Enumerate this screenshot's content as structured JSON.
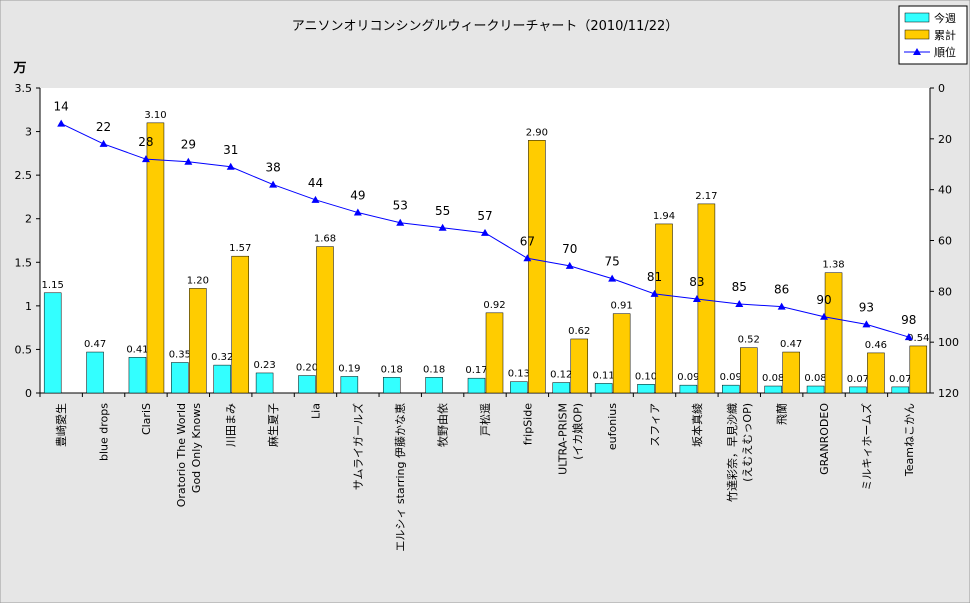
{
  "chart_data": {
    "type": "bar",
    "title": "アニソンオリコンシングルウィークリーチャート（2010/11/22）",
    "y_label": "万",
    "categories": [
      [
        "豊崎愛生"
      ],
      [
        "blue drops"
      ],
      [
        "ClariS"
      ],
      [
        "Oratorio The World",
        "God Only Knows"
      ],
      [
        "川田まみ"
      ],
      [
        "麻生夏子"
      ],
      [
        "Lia"
      ],
      [
        "サムライガールズ"
      ],
      [
        "エルシィ starring 伊藤かな恵"
      ],
      [
        "牧野由依"
      ],
      [
        "戸松遥"
      ],
      [
        "fripSide"
      ],
      [
        "ULTRA-PRISM",
        "(イカ娘OP)"
      ],
      [
        "eufonius"
      ],
      [
        "スフィア"
      ],
      [
        "坂本真綾"
      ],
      [
        "竹達彩奈，早見沙織",
        "(えむえむっOP)"
      ],
      [
        "飛蘭"
      ],
      [
        "GRANRODEO"
      ],
      [
        "ミルキィホームズ"
      ],
      [
        "Teamねこかん"
      ]
    ],
    "series": [
      {
        "name": "今週",
        "color": "#33ffff",
        "values": [
          1.15,
          0.47,
          0.41,
          0.35,
          0.32,
          0.23,
          0.2,
          0.19,
          0.18,
          0.18,
          0.17,
          0.13,
          0.12,
          0.11,
          0.1,
          0.09,
          0.09,
          0.08,
          0.08,
          0.07,
          0.07
        ],
        "value_labels": [
          "1.15",
          "0.47",
          "0.41",
          "0.35",
          "0.32",
          "0.23",
          "0.20",
          "0.19",
          "0.18",
          "0.18",
          "0.17",
          "0.13",
          "0.12",
          "0.11",
          "0.10",
          "0.09",
          "0.09",
          "0.08",
          "0.08",
          "0.07",
          "0.07"
        ]
      },
      {
        "name": "累計",
        "color": "#ffcc00",
        "values": [
          null,
          null,
          3.1,
          1.2,
          1.57,
          null,
          1.68,
          null,
          null,
          null,
          0.92,
          2.9,
          0.62,
          0.91,
          1.94,
          2.17,
          0.52,
          0.47,
          1.38,
          0.46,
          0.54
        ],
        "value_labels": [
          null,
          null,
          "3.10",
          "1.20",
          "1.57",
          null,
          "1.68",
          null,
          null,
          null,
          "0.92",
          "2.90",
          "0.62",
          "0.91",
          "1.94",
          "2.17",
          "0.52",
          "0.47",
          "1.38",
          "0.46",
          "0.54"
        ]
      },
      {
        "name": "順位",
        "color": "#0000ff",
        "type": "line",
        "axis": "y2",
        "values": [
          14,
          22,
          28,
          29,
          31,
          38,
          44,
          49,
          53,
          55,
          57,
          67,
          70,
          75,
          81,
          83,
          85,
          86,
          90,
          93,
          98
        ]
      }
    ],
    "ylim": [
      0,
      3.5
    ],
    "yticks": [
      0,
      0.5,
      1,
      1.5,
      2,
      2.5,
      3,
      3.5
    ],
    "y2lim": [
      120,
      0
    ],
    "y2ticks": [
      0,
      20,
      40,
      60,
      80,
      100,
      120
    ],
    "legend": "top-right",
    "grid": false
  }
}
